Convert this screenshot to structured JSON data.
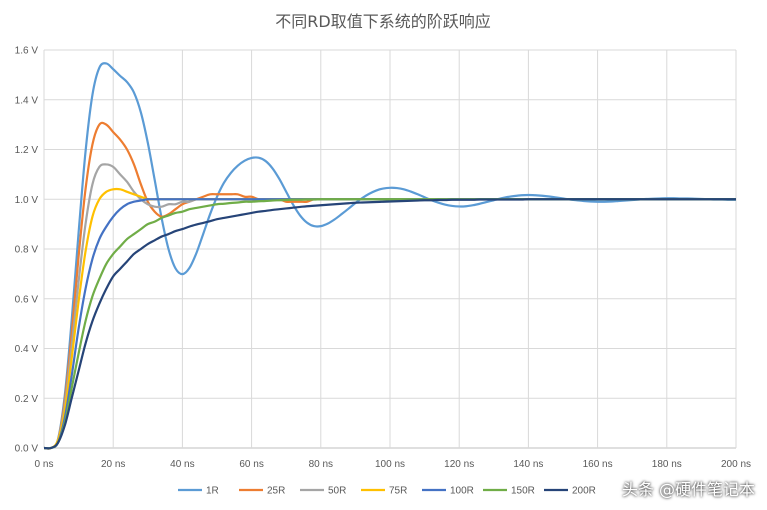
{
  "chart_data": {
    "type": "line",
    "title": "不同RD取值下系统的阶跃响应",
    "x_ticks": [
      "0 ns",
      "20 ns",
      "40 ns",
      "60 ns",
      "80 ns",
      "100 ns",
      "120 ns",
      "140 ns",
      "160 ns",
      "180 ns",
      "200 ns"
    ],
    "y_ticks": [
      "0.0 V",
      "0.2 V",
      "0.4 V",
      "0.6 V",
      "0.8 V",
      "1.0 V",
      "1.2 V",
      "1.4 V",
      "1.6 V"
    ],
    "xlim": [
      0,
      200
    ],
    "ylim": [
      0,
      1.6
    ],
    "grid": true,
    "legend_position": "bottom",
    "x": [
      0,
      2,
      4,
      6,
      8,
      10,
      12,
      14,
      16,
      18,
      20,
      22,
      24,
      26,
      28,
      30,
      32,
      34,
      36,
      38,
      40,
      42,
      44,
      46,
      48,
      50,
      52,
      54,
      56,
      58,
      60,
      62,
      64,
      66,
      68,
      70,
      72,
      74,
      76,
      78,
      80,
      82,
      84,
      86,
      88,
      90,
      92,
      94,
      96,
      98,
      100,
      102,
      104,
      106,
      108,
      110,
      112,
      114,
      116,
      118,
      120,
      122,
      124,
      126,
      128,
      130,
      132,
      134,
      136,
      138,
      140,
      142,
      144,
      146,
      148,
      150,
      152,
      154,
      156,
      158,
      160,
      162,
      164,
      166,
      168,
      170,
      172,
      174,
      176,
      178,
      180,
      182,
      184,
      186,
      188,
      190,
      192,
      194,
      196,
      198,
      200
    ],
    "series": [
      {
        "name": "1R",
        "color": "#5b9bd5",
        "values": [
          0,
          0,
          0.033,
          0.211,
          0.513,
          0.866,
          1.191,
          1.42,
          1.529,
          1.546,
          1.523,
          1.496,
          1.471,
          1.429,
          1.349,
          1.227,
          1.077,
          0.924,
          0.799,
          0.722,
          0.699,
          0.723,
          0.782,
          0.86,
          0.94,
          1.01,
          1.066,
          1.106,
          1.135,
          1.155,
          1.166,
          1.167,
          1.154,
          1.125,
          1.082,
          1.03,
          0.978,
          0.935,
          0.906,
          0.892,
          0.892,
          0.902,
          0.919,
          0.94,
          0.962,
          0.985,
          1.005,
          1.022,
          1.035,
          1.043,
          1.046,
          1.045,
          1.04,
          1.031,
          1.02,
          1.008,
          0.996,
          0.986,
          0.978,
          0.973,
          0.971,
          0.972,
          0.976,
          0.982,
          0.989,
          0.996,
          1.003,
          1.009,
          1.013,
          1.016,
          1.017,
          1.016,
          1.014,
          1.011,
          1.007,
          1.003,
          0.999,
          0.996,
          0.993,
          0.991,
          0.99,
          0.99,
          0.991,
          0.993,
          0.995,
          0.997,
          0.999,
          1.001,
          1.002,
          1.003,
          1.004,
          1.004,
          1.003,
          1.003,
          1.002,
          1.001,
          1.0,
          0.999,
          0.999,
          0.998,
          0.998
        ]
      },
      {
        "name": "25R",
        "color": "#ed7d31",
        "values": [
          0,
          0,
          0.03,
          0.19,
          0.46,
          0.77,
          1.04,
          1.22,
          1.3,
          1.3,
          1.27,
          1.24,
          1.2,
          1.14,
          1.06,
          0.99,
          0.95,
          0.93,
          0.94,
          0.96,
          0.98,
          0.99,
          1.0,
          1.01,
          1.02,
          1.02,
          1.02,
          1.02,
          1.02,
          1.01,
          1.01,
          1.0,
          1.0,
          1.0,
          1.0,
          0.99,
          0.99,
          0.99,
          0.99,
          1.0,
          1.0,
          1.0,
          1.0,
          1.0,
          1.0,
          1.0,
          1.0,
          1.0,
          1.0,
          1.0,
          1.0,
          1.0,
          1.0,
          1.0,
          1.0,
          1.0,
          1.0,
          1.0,
          1.0,
          1.0,
          1.0,
          1.0,
          1.0,
          1.0,
          1.0,
          1.0,
          1.0,
          1.0,
          1.0,
          1.0,
          1.0,
          1.0,
          1.0,
          1.0,
          1.0,
          1.0,
          1.0,
          1.0,
          1.0,
          1.0,
          1.0,
          1.0,
          1.0,
          1.0,
          1.0,
          1.0,
          1.0,
          1.0,
          1.0,
          1.0,
          1.0,
          1.0,
          1.0,
          1.0,
          1.0,
          1.0,
          1.0,
          1.0,
          1.0,
          1.0,
          1.0
        ]
      },
      {
        "name": "50R",
        "color": "#a5a5a5",
        "values": [
          0,
          0,
          0.03,
          0.17,
          0.41,
          0.67,
          0.9,
          1.06,
          1.13,
          1.14,
          1.13,
          1.1,
          1.07,
          1.03,
          1.0,
          0.98,
          0.97,
          0.97,
          0.98,
          0.98,
          0.99,
          0.99,
          1.0,
          1.0,
          1.0,
          1.0,
          1.0,
          1.0,
          1.0,
          1.0,
          1.0,
          1.0,
          1.0,
          1.0,
          1.0,
          1.0,
          1.0,
          1.0,
          1.0,
          1.0,
          1.0,
          1.0,
          1.0,
          1.0,
          1.0,
          1.0,
          1.0,
          1.0,
          1.0,
          1.0,
          1.0,
          1.0,
          1.0,
          1.0,
          1.0,
          1.0,
          1.0,
          1.0,
          1.0,
          1.0,
          1.0,
          1.0,
          1.0,
          1.0,
          1.0,
          1.0,
          1.0,
          1.0,
          1.0,
          1.0,
          1.0,
          1.0,
          1.0,
          1.0,
          1.0,
          1.0,
          1.0,
          1.0,
          1.0,
          1.0,
          1.0,
          1.0,
          1.0,
          1.0,
          1.0,
          1.0,
          1.0,
          1.0,
          1.0,
          1.0,
          1.0,
          1.0,
          1.0,
          1.0,
          1.0,
          1.0,
          1.0,
          1.0,
          1.0,
          1.0,
          1.0
        ]
      },
      {
        "name": "75R",
        "color": "#ffc000",
        "values": [
          0,
          0,
          0.03,
          0.15,
          0.36,
          0.59,
          0.79,
          0.93,
          1.0,
          1.03,
          1.04,
          1.04,
          1.03,
          1.02,
          1.01,
          1.0,
          1.0,
          1.0,
          1.0,
          1.0,
          1.0,
          1.0,
          1.0,
          1.0,
          1.0,
          1.0,
          1.0,
          1.0,
          1.0,
          1.0,
          1.0,
          1.0,
          1.0,
          1.0,
          1.0,
          1.0,
          1.0,
          1.0,
          1.0,
          1.0,
          1.0,
          1.0,
          1.0,
          1.0,
          1.0,
          1.0,
          1.0,
          1.0,
          1.0,
          1.0,
          1.0,
          1.0,
          1.0,
          1.0,
          1.0,
          1.0,
          1.0,
          1.0,
          1.0,
          1.0,
          1.0,
          1.0,
          1.0,
          1.0,
          1.0,
          1.0,
          1.0,
          1.0,
          1.0,
          1.0,
          1.0,
          1.0,
          1.0,
          1.0,
          1.0,
          1.0,
          1.0,
          1.0,
          1.0,
          1.0,
          1.0,
          1.0,
          1.0,
          1.0,
          1.0,
          1.0,
          1.0,
          1.0,
          1.0,
          1.0,
          1.0,
          1.0,
          1.0,
          1.0,
          1.0,
          1.0,
          1.0,
          1.0,
          1.0,
          1.0,
          1.0
        ]
      },
      {
        "name": "100R",
        "color": "#4472c4",
        "values": [
          0,
          0,
          0.02,
          0.12,
          0.29,
          0.48,
          0.64,
          0.76,
          0.84,
          0.89,
          0.93,
          0.96,
          0.98,
          0.99,
          0.995,
          1.0,
          1.0,
          1.0,
          1.0,
          1.0,
          1.0,
          1.0,
          1.0,
          1.0,
          1.0,
          1.0,
          1.0,
          1.0,
          1.0,
          1.0,
          1.0,
          1.0,
          1.0,
          1.0,
          1.0,
          1.0,
          1.0,
          1.0,
          1.0,
          1.0,
          1.0,
          1.0,
          1.0,
          1.0,
          1.0,
          1.0,
          1.0,
          1.0,
          1.0,
          1.0,
          1.0,
          1.0,
          1.0,
          1.0,
          1.0,
          1.0,
          1.0,
          1.0,
          1.0,
          1.0,
          1.0,
          1.0,
          1.0,
          1.0,
          1.0,
          1.0,
          1.0,
          1.0,
          1.0,
          1.0,
          1.0,
          1.0,
          1.0,
          1.0,
          1.0,
          1.0,
          1.0,
          1.0,
          1.0,
          1.0,
          1.0,
          1.0,
          1.0,
          1.0,
          1.0,
          1.0,
          1.0,
          1.0,
          1.0,
          1.0,
          1.0,
          1.0,
          1.0,
          1.0,
          1.0,
          1.0,
          1.0,
          1.0,
          1.0,
          1.0,
          1.0
        ]
      },
      {
        "name": "150R",
        "color": "#70ad47",
        "values": [
          0,
          0,
          0.02,
          0.1,
          0.24,
          0.38,
          0.51,
          0.61,
          0.68,
          0.74,
          0.78,
          0.81,
          0.84,
          0.86,
          0.88,
          0.9,
          0.91,
          0.925,
          0.935,
          0.945,
          0.95,
          0.96,
          0.965,
          0.97,
          0.975,
          0.98,
          0.982,
          0.985,
          0.987,
          0.99,
          0.99,
          0.992,
          0.993,
          0.995,
          0.996,
          0.997,
          0.998,
          0.998,
          0.999,
          0.999,
          1.0,
          1.0,
          1.0,
          1.0,
          1.0,
          1.0,
          1.0,
          1.0,
          1.0,
          1.0,
          1.0,
          1.0,
          1.0,
          1.0,
          1.0,
          1.0,
          1.0,
          1.0,
          1.0,
          1.0,
          1.0,
          1.0,
          1.0,
          1.0,
          1.0,
          1.0,
          1.0,
          1.0,
          1.0,
          1.0,
          1.0,
          1.0,
          1.0,
          1.0,
          1.0,
          1.0,
          1.0,
          1.0,
          1.0,
          1.0,
          1.0,
          1.0,
          1.0,
          1.0,
          1.0,
          1.0,
          1.0,
          1.0,
          1.0,
          1.0,
          1.0,
          1.0,
          1.0,
          1.0,
          1.0,
          1.0,
          1.0,
          1.0,
          1.0,
          1.0,
          1.0
        ]
      },
      {
        "name": "200R",
        "color": "#264478",
        "values": [
          0,
          0,
          0.02,
          0.09,
          0.2,
          0.31,
          0.42,
          0.51,
          0.58,
          0.64,
          0.69,
          0.72,
          0.75,
          0.78,
          0.8,
          0.82,
          0.835,
          0.85,
          0.86,
          0.872,
          0.88,
          0.89,
          0.898,
          0.905,
          0.912,
          0.92,
          0.925,
          0.93,
          0.935,
          0.94,
          0.945,
          0.95,
          0.953,
          0.957,
          0.96,
          0.963,
          0.966,
          0.969,
          0.972,
          0.974,
          0.976,
          0.978,
          0.98,
          0.982,
          0.984,
          0.986,
          0.987,
          0.988,
          0.989,
          0.99,
          0.991,
          0.992,
          0.993,
          0.994,
          0.995,
          0.996,
          0.996,
          0.997,
          0.997,
          0.998,
          0.998,
          0.998,
          0.998,
          0.999,
          0.999,
          0.999,
          0.999,
          0.999,
          0.999,
          0.999,
          1.0,
          1.0,
          1.0,
          1.0,
          1.0,
          1.0,
          1.0,
          1.0,
          1.0,
          1.0,
          1.0,
          1.0,
          1.0,
          1.0,
          1.0,
          1.0,
          1.0,
          1.0,
          1.0,
          1.0,
          1.0,
          1.0,
          1.0,
          1.0,
          1.0,
          1.0,
          1.0,
          1.0,
          1.0,
          1.0,
          1.0
        ]
      }
    ]
  },
  "watermark": "头条 @硬件笔记本"
}
